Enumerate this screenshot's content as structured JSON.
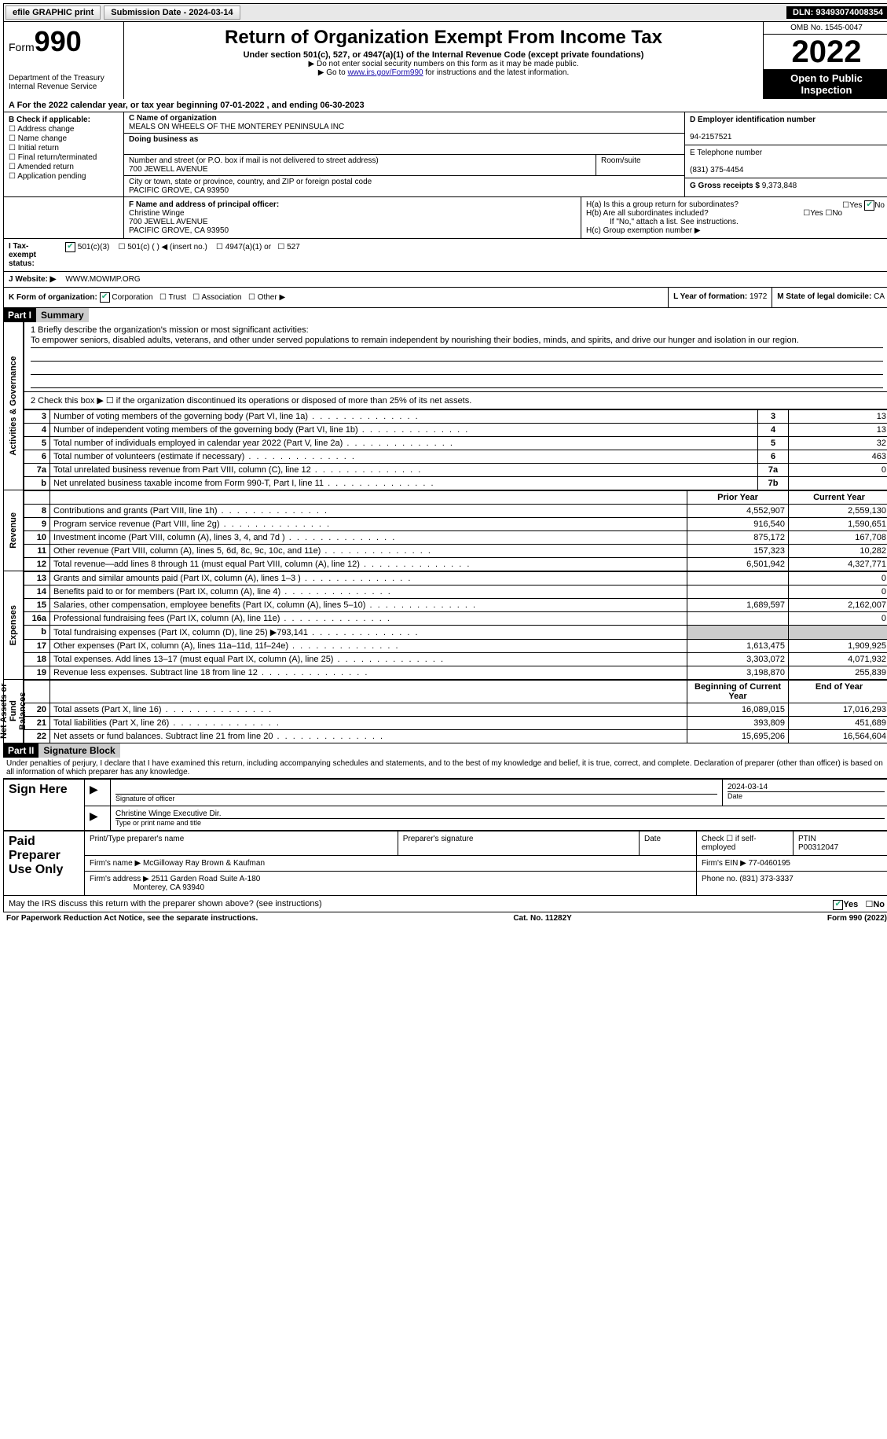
{
  "topbar": {
    "efile_label": "efile GRAPHIC print",
    "submission_label": "Submission Date - 2024-03-14",
    "dln_label": "DLN: 93493074008354"
  },
  "header": {
    "form_label": "Form",
    "form_number": "990",
    "dept": "Department of the Treasury\nInternal Revenue Service",
    "title": "Return of Organization Exempt From Income Tax",
    "subtitle": "Under section 501(c), 527, or 4947(a)(1) of the Internal Revenue Code (except private foundations)",
    "note1": "▶ Do not enter social security numbers on this form as it may be made public.",
    "note2_prefix": "▶ Go to ",
    "note2_link": "www.irs.gov/Form990",
    "note2_suffix": " for instructions and the latest information.",
    "omb": "OMB No. 1545-0047",
    "year": "2022",
    "open_pub": "Open to Public Inspection"
  },
  "rowA": "A For the 2022 calendar year, or tax year beginning 07-01-2022    , and ending 06-30-2023",
  "sectionB": {
    "label": "B Check if applicable:",
    "items": [
      "Address change",
      "Name change",
      "Initial return",
      "Final return/terminated",
      "Amended return",
      "Application pending"
    ]
  },
  "sectionC": {
    "name_lbl": "C Name of organization",
    "name": "MEALS ON WHEELS OF THE MONTEREY PENINSULA INC",
    "dba_lbl": "Doing business as",
    "addr_lbl": "Number and street (or P.O. box if mail is not delivered to street address)",
    "addr": "700 JEWELL AVENUE",
    "room_lbl": "Room/suite",
    "city_lbl": "City or town, state or province, country, and ZIP or foreign postal code",
    "city": "PACIFIC GROVE, CA  93950"
  },
  "sectionD": {
    "ein_lbl": "D Employer identification number",
    "ein": "94-2157521",
    "phone_lbl": "E Telephone number",
    "phone": "(831) 375-4454",
    "gross_lbl": "G Gross receipts $ ",
    "gross": "9,373,848"
  },
  "sectionF": {
    "lbl": "F Name and address of principal officer:",
    "name": "Christine Winge",
    "addr1": "700 JEWELL AVENUE",
    "addr2": "PACIFIC GROVE, CA  93950"
  },
  "sectionH": {
    "ha": "H(a)  Is this a group return for subordinates?",
    "hb": "H(b)  Are all subordinates included?",
    "hb_note": "If \"No,\" attach a list. See instructions.",
    "hc": "H(c)  Group exemption number ▶",
    "yes": "Yes",
    "no": "No"
  },
  "rowI": {
    "lbl": "I  Tax-exempt status:",
    "opts": [
      "501(c)(3)",
      "501(c) (  ) ◀ (insert no.)",
      "4947(a)(1) or",
      "527"
    ]
  },
  "rowJ": {
    "lbl": "J  Website: ▶",
    "val": "WWW.MOWMP.ORG"
  },
  "rowK": {
    "lbl": "K Form of organization:",
    "opts": [
      "Corporation",
      "Trust",
      "Association",
      "Other ▶"
    ],
    "year_lbl": "L Year of formation: ",
    "year": "1972",
    "state_lbl": "M State of legal domicile: ",
    "state": "CA"
  },
  "part1": {
    "hdr": "Part I",
    "title": "Summary"
  },
  "mission": {
    "lbl": "1   Briefly describe the organization's mission or most significant activities:",
    "text": "To empower seniors, disabled adults, veterans, and other under served populations to remain independent by nourishing their bodies, minds, and spirits, and drive our hunger and isolation in our region."
  },
  "line2": "2   Check this box ▶ ☐ if the organization discontinued its operations or disposed of more than 25% of its net assets.",
  "vlabels": {
    "gov": "Activities & Governance",
    "rev": "Revenue",
    "exp": "Expenses",
    "net": "Net Assets or Fund Balances"
  },
  "gov_lines": [
    {
      "n": "3",
      "d": "Number of voting members of the governing body (Part VI, line 1a)",
      "b": "3",
      "v": "13"
    },
    {
      "n": "4",
      "d": "Number of independent voting members of the governing body (Part VI, line 1b)",
      "b": "4",
      "v": "13"
    },
    {
      "n": "5",
      "d": "Total number of individuals employed in calendar year 2022 (Part V, line 2a)",
      "b": "5",
      "v": "32"
    },
    {
      "n": "6",
      "d": "Total number of volunteers (estimate if necessary)",
      "b": "6",
      "v": "463"
    },
    {
      "n": "7a",
      "d": "Total unrelated business revenue from Part VIII, column (C), line 12",
      "b": "7a",
      "v": "0"
    },
    {
      "n": "b",
      "d": "Net unrelated business taxable income from Form 990-T, Part I, line 11",
      "b": "7b",
      "v": ""
    }
  ],
  "col_hdrs": {
    "prior": "Prior Year",
    "current": "Current Year"
  },
  "rev_lines": [
    {
      "n": "8",
      "d": "Contributions and grants (Part VIII, line 1h)",
      "p": "4,552,907",
      "c": "2,559,130"
    },
    {
      "n": "9",
      "d": "Program service revenue (Part VIII, line 2g)",
      "p": "916,540",
      "c": "1,590,651"
    },
    {
      "n": "10",
      "d": "Investment income (Part VIII, column (A), lines 3, 4, and 7d )",
      "p": "875,172",
      "c": "167,708"
    },
    {
      "n": "11",
      "d": "Other revenue (Part VIII, column (A), lines 5, 6d, 8c, 9c, 10c, and 11e)",
      "p": "157,323",
      "c": "10,282"
    },
    {
      "n": "12",
      "d": "Total revenue—add lines 8 through 11 (must equal Part VIII, column (A), line 12)",
      "p": "6,501,942",
      "c": "4,327,771"
    }
  ],
  "exp_lines": [
    {
      "n": "13",
      "d": "Grants and similar amounts paid (Part IX, column (A), lines 1–3 )",
      "p": "",
      "c": "0"
    },
    {
      "n": "14",
      "d": "Benefits paid to or for members (Part IX, column (A), line 4)",
      "p": "",
      "c": "0"
    },
    {
      "n": "15",
      "d": "Salaries, other compensation, employee benefits (Part IX, column (A), lines 5–10)",
      "p": "1,689,597",
      "c": "2,162,007"
    },
    {
      "n": "16a",
      "d": "Professional fundraising fees (Part IX, column (A), line 11e)",
      "p": "",
      "c": "0"
    },
    {
      "n": "b",
      "d": "Total fundraising expenses (Part IX, column (D), line 25) ▶793,141",
      "p": "shade",
      "c": "shade"
    },
    {
      "n": "17",
      "d": "Other expenses (Part IX, column (A), lines 11a–11d, 11f–24e)",
      "p": "1,613,475",
      "c": "1,909,925"
    },
    {
      "n": "18",
      "d": "Total expenses. Add lines 13–17 (must equal Part IX, column (A), line 25)",
      "p": "3,303,072",
      "c": "4,071,932"
    },
    {
      "n": "19",
      "d": "Revenue less expenses. Subtract line 18 from line 12",
      "p": "3,198,870",
      "c": "255,839"
    }
  ],
  "net_hdrs": {
    "beg": "Beginning of Current Year",
    "end": "End of Year"
  },
  "net_lines": [
    {
      "n": "20",
      "d": "Total assets (Part X, line 16)",
      "p": "16,089,015",
      "c": "17,016,293"
    },
    {
      "n": "21",
      "d": "Total liabilities (Part X, line 26)",
      "p": "393,809",
      "c": "451,689"
    },
    {
      "n": "22",
      "d": "Net assets or fund balances. Subtract line 21 from line 20",
      "p": "15,695,206",
      "c": "16,564,604"
    }
  ],
  "part2": {
    "hdr": "Part II",
    "title": "Signature Block"
  },
  "penalties": "Under penalties of perjury, I declare that I have examined this return, including accompanying schedules and statements, and to the best of my knowledge and belief, it is true, correct, and complete. Declaration of preparer (other than officer) is based on all information of which preparer has any knowledge.",
  "sign": {
    "here": "Sign Here",
    "sig_lbl": "Signature of officer",
    "date_lbl": "Date",
    "date": "2024-03-14",
    "name": "Christine Winge  Executive Dir.",
    "name_lbl": "Type or print name and title"
  },
  "preparer": {
    "hdr": "Paid Preparer Use Only",
    "print_lbl": "Print/Type preparer's name",
    "sig_lbl": "Preparer's signature",
    "date_lbl": "Date",
    "check_lbl": "Check ☐ if self-employed",
    "ptin_lbl": "PTIN",
    "ptin": "P00312047",
    "firm_name_lbl": "Firm's name    ▶ ",
    "firm_name": "McGilloway Ray Brown & Kaufman",
    "firm_ein_lbl": "Firm's EIN ▶ ",
    "firm_ein": "77-0460195",
    "firm_addr_lbl": "Firm's address ▶ ",
    "firm_addr1": "2511 Garden Road Suite A-180",
    "firm_addr2": "Monterey, CA  93940",
    "phone_lbl": "Phone no. ",
    "phone": "(831) 373-3337"
  },
  "discuss": "May the IRS discuss this return with the preparer shown above? (see instructions)",
  "footer": {
    "left": "For Paperwork Reduction Act Notice, see the separate instructions.",
    "mid": "Cat. No. 11282Y",
    "right": "Form 990 (2022)"
  }
}
